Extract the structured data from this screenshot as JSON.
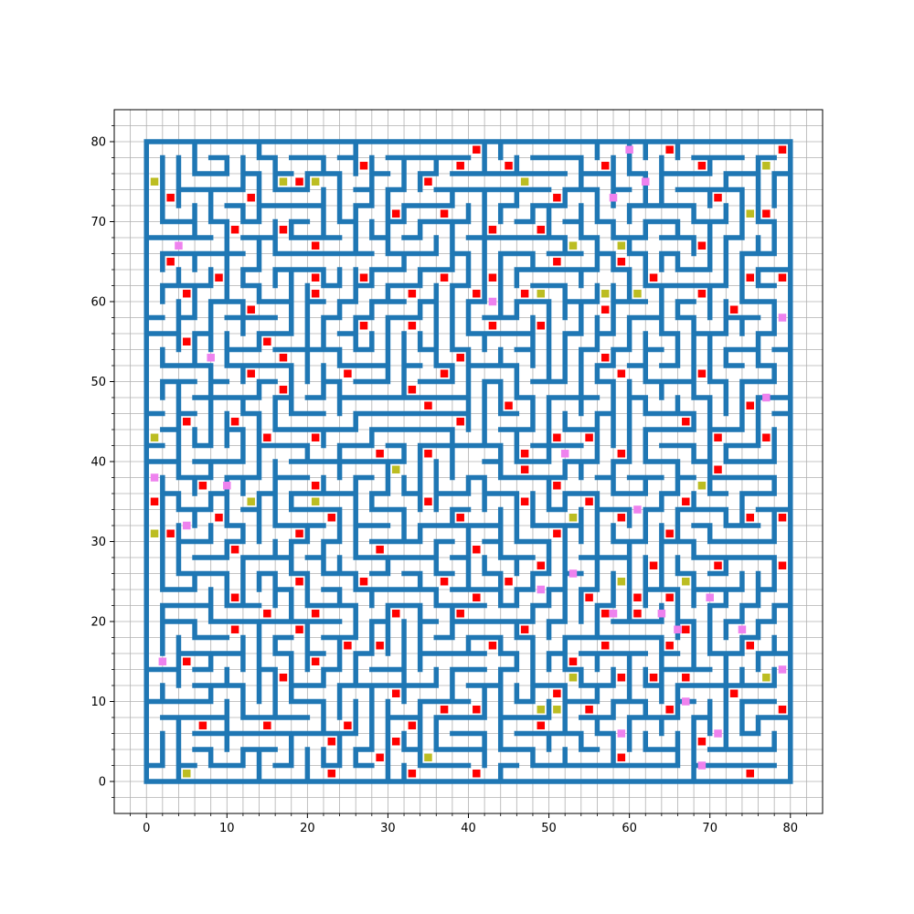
{
  "chart_data": {
    "type": "scatter",
    "title": "",
    "xlabel": "",
    "ylabel": "",
    "xlim": [
      -4,
      84
    ],
    "ylim": [
      -4,
      84
    ],
    "grid": true,
    "x_ticks": [
      0,
      10,
      20,
      30,
      40,
      50,
      60,
      70,
      80
    ],
    "y_ticks": [
      0,
      10,
      20,
      30,
      40,
      50,
      60,
      70,
      80
    ],
    "maze": {
      "size": 80,
      "wall_color": "#1f77b4",
      "wall_shape": "square grid cells, outer border fully closed except center opening",
      "center_opening": [
        40,
        40
      ]
    },
    "series": [
      {
        "color": "#ff0000",
        "marker": "square",
        "points": [
          [
            41,
            79
          ],
          [
            57,
            77
          ],
          [
            65,
            79
          ],
          [
            79,
            79
          ],
          [
            27,
            77
          ],
          [
            39,
            77
          ],
          [
            45,
            77
          ],
          [
            69,
            77
          ],
          [
            3,
            73
          ],
          [
            13,
            73
          ],
          [
            19,
            75
          ],
          [
            35,
            75
          ],
          [
            51,
            73
          ],
          [
            71,
            73
          ],
          [
            31,
            71
          ],
          [
            37,
            71
          ],
          [
            77,
            71
          ],
          [
            11,
            69
          ],
          [
            17,
            69
          ],
          [
            43,
            69
          ],
          [
            49,
            69
          ],
          [
            21,
            67
          ],
          [
            69,
            67
          ],
          [
            3,
            65
          ],
          [
            51,
            65
          ],
          [
            59,
            65
          ],
          [
            9,
            63
          ],
          [
            21,
            63
          ],
          [
            27,
            63
          ],
          [
            37,
            63
          ],
          [
            43,
            63
          ],
          [
            63,
            63
          ],
          [
            75,
            63
          ],
          [
            79,
            63
          ],
          [
            5,
            61
          ],
          [
            21,
            61
          ],
          [
            33,
            61
          ],
          [
            41,
            61
          ],
          [
            47,
            61
          ],
          [
            69,
            61
          ],
          [
            13,
            59
          ],
          [
            57,
            59
          ],
          [
            73,
            59
          ],
          [
            27,
            57
          ],
          [
            33,
            57
          ],
          [
            43,
            57
          ],
          [
            49,
            57
          ],
          [
            5,
            55
          ],
          [
            15,
            55
          ],
          [
            17,
            53
          ],
          [
            39,
            53
          ],
          [
            57,
            53
          ],
          [
            13,
            51
          ],
          [
            25,
            51
          ],
          [
            37,
            51
          ],
          [
            59,
            51
          ],
          [
            69,
            51
          ],
          [
            17,
            49
          ],
          [
            33,
            49
          ],
          [
            35,
            47
          ],
          [
            45,
            47
          ],
          [
            75,
            47
          ],
          [
            5,
            45
          ],
          [
            11,
            45
          ],
          [
            39,
            45
          ],
          [
            67,
            45
          ],
          [
            15,
            43
          ],
          [
            21,
            43
          ],
          [
            51,
            43
          ],
          [
            55,
            43
          ],
          [
            71,
            43
          ],
          [
            77,
            43
          ],
          [
            29,
            41
          ],
          [
            35,
            41
          ],
          [
            47,
            41
          ],
          [
            59,
            41
          ],
          [
            47,
            39
          ],
          [
            71,
            39
          ],
          [
            7,
            37
          ],
          [
            21,
            37
          ],
          [
            51,
            37
          ],
          [
            1,
            35
          ],
          [
            35,
            35
          ],
          [
            47,
            35
          ],
          [
            55,
            35
          ],
          [
            67,
            35
          ],
          [
            9,
            33
          ],
          [
            23,
            33
          ],
          [
            39,
            33
          ],
          [
            59,
            33
          ],
          [
            75,
            33
          ],
          [
            79,
            33
          ],
          [
            3,
            31
          ],
          [
            19,
            31
          ],
          [
            51,
            31
          ],
          [
            65,
            31
          ],
          [
            11,
            29
          ],
          [
            29,
            29
          ],
          [
            41,
            29
          ],
          [
            49,
            27
          ],
          [
            63,
            27
          ],
          [
            71,
            27
          ],
          [
            79,
            27
          ],
          [
            19,
            25
          ],
          [
            27,
            25
          ],
          [
            37,
            25
          ],
          [
            45,
            25
          ],
          [
            11,
            23
          ],
          [
            41,
            23
          ],
          [
            55,
            23
          ],
          [
            61,
            23
          ],
          [
            65,
            23
          ],
          [
            15,
            21
          ],
          [
            21,
            21
          ],
          [
            31,
            21
          ],
          [
            39,
            21
          ],
          [
            57,
            21
          ],
          [
            61,
            21
          ],
          [
            11,
            19
          ],
          [
            19,
            19
          ],
          [
            47,
            19
          ],
          [
            67,
            19
          ],
          [
            25,
            17
          ],
          [
            29,
            17
          ],
          [
            43,
            17
          ],
          [
            57,
            17
          ],
          [
            65,
            17
          ],
          [
            75,
            17
          ],
          [
            5,
            15
          ],
          [
            21,
            15
          ],
          [
            53,
            15
          ],
          [
            17,
            13
          ],
          [
            59,
            13
          ],
          [
            63,
            13
          ],
          [
            67,
            13
          ],
          [
            31,
            11
          ],
          [
            51,
            11
          ],
          [
            73,
            11
          ],
          [
            37,
            9
          ],
          [
            41,
            9
          ],
          [
            55,
            9
          ],
          [
            65,
            9
          ],
          [
            79,
            9
          ],
          [
            7,
            7
          ],
          [
            15,
            7
          ],
          [
            25,
            7
          ],
          [
            33,
            7
          ],
          [
            49,
            7
          ],
          [
            23,
            5
          ],
          [
            31,
            5
          ],
          [
            69,
            5
          ],
          [
            29,
            3
          ],
          [
            59,
            3
          ],
          [
            23,
            1
          ],
          [
            33,
            1
          ],
          [
            41,
            1
          ],
          [
            75,
            1
          ]
        ]
      },
      {
        "color": "#bcbd22",
        "marker": "square",
        "points": [
          [
            1,
            75
          ],
          [
            17,
            75
          ],
          [
            21,
            75
          ],
          [
            47,
            75
          ],
          [
            77,
            77
          ],
          [
            75,
            71
          ],
          [
            53,
            67
          ],
          [
            59,
            67
          ],
          [
            49,
            61
          ],
          [
            57,
            61
          ],
          [
            61,
            61
          ],
          [
            1,
            43
          ],
          [
            31,
            39
          ],
          [
            69,
            37
          ],
          [
            13,
            35
          ],
          [
            21,
            35
          ],
          [
            53,
            33
          ],
          [
            1,
            31
          ],
          [
            59,
            25
          ],
          [
            67,
            25
          ],
          [
            53,
            13
          ],
          [
            77,
            13
          ],
          [
            49,
            9
          ],
          [
            51,
            9
          ],
          [
            35,
            3
          ],
          [
            5,
            1
          ]
        ]
      },
      {
        "color": "#ee82ee",
        "marker": "square",
        "points": [
          [
            60,
            79
          ],
          [
            62,
            75
          ],
          [
            58,
            73
          ],
          [
            4,
            67
          ],
          [
            43,
            60
          ],
          [
            79,
            58
          ],
          [
            8,
            53
          ],
          [
            77,
            48
          ],
          [
            52,
            41
          ],
          [
            1,
            38
          ],
          [
            10,
            37
          ],
          [
            61,
            34
          ],
          [
            5,
            32
          ],
          [
            53,
            26
          ],
          [
            49,
            24
          ],
          [
            70,
            23
          ],
          [
            58,
            21
          ],
          [
            64,
            21
          ],
          [
            66,
            19
          ],
          [
            74,
            19
          ],
          [
            2,
            15
          ],
          [
            79,
            14
          ],
          [
            67,
            10
          ],
          [
            59,
            6
          ],
          [
            71,
            6
          ],
          [
            69,
            2
          ]
        ]
      }
    ]
  }
}
